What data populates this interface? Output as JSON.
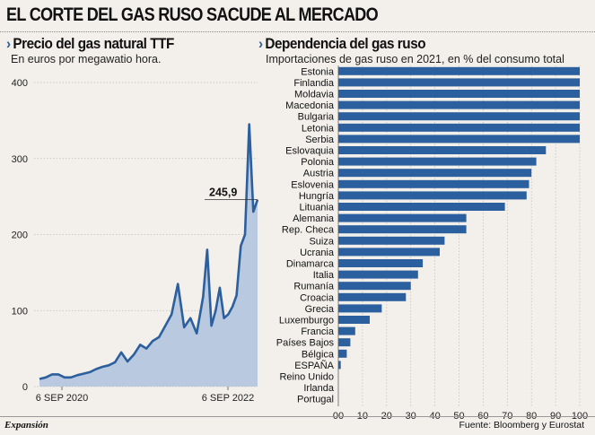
{
  "header": {
    "title": "EL CORTE DEL GAS RUSO SACUDE AL MERCADO"
  },
  "footer": {
    "brand": "Expansión",
    "source": "Fuente: Bloomberg y Eurostat"
  },
  "colors": {
    "line": "#2c5f9e",
    "area": "#b9c9df",
    "bar": "#2c5f9e",
    "background": "#f3f0eb"
  },
  "chart_data": [
    {
      "type": "area",
      "title": "Precio del gas natural TTF",
      "subtitle": "En euros por megawatio hora.",
      "x_tick_labels": [
        "6 SEP 2020",
        "6 SEP 2022"
      ],
      "y_ticks": [
        0,
        100,
        200,
        300,
        400
      ],
      "ylim": [
        0,
        400
      ],
      "annotation": {
        "label": "245,9",
        "value": 245.9
      },
      "x": [
        0,
        3,
        6,
        9,
        12,
        15,
        18,
        21,
        24,
        27,
        30,
        33,
        36,
        39,
        42,
        45,
        48,
        51,
        54,
        57,
        60,
        63,
        66,
        69,
        72,
        75,
        78,
        80,
        82,
        84,
        86,
        88,
        90,
        92,
        94,
        96,
        98,
        100,
        102,
        104
      ],
      "values": [
        10,
        12,
        16,
        16,
        12,
        12,
        15,
        17,
        19,
        23,
        26,
        28,
        32,
        45,
        33,
        42,
        55,
        50,
        60,
        65,
        80,
        95,
        135,
        78,
        90,
        70,
        118,
        180,
        80,
        100,
        130,
        90,
        95,
        105,
        120,
        185,
        200,
        345,
        230,
        245.9
      ]
    },
    {
      "type": "bar",
      "orientation": "horizontal",
      "title": "Dependencia del gas ruso",
      "subtitle": "Importaciones de gas ruso en 2021, en % del  consumo total",
      "xlim": [
        0,
        100
      ],
      "x_ticks": [
        "00",
        "10",
        "20",
        "30",
        "40",
        "50",
        "60",
        "70",
        "80",
        "90",
        "100"
      ],
      "categories": [
        "Estonia",
        "Finlandia",
        "Moldavia",
        "Macedonia",
        "Bulgaria",
        "Letonia",
        "Serbia",
        "Eslovaquia",
        "Polonia",
        "Austria",
        "Eslovenia",
        "Hungría",
        "Lituania",
        "Alemania",
        "Rep. Checa",
        "Suiza",
        "Ucrania",
        "Dinamarca",
        "Italia",
        "Rumanía",
        "Croacia",
        "Grecia",
        "Luxemburgo",
        "Francia",
        "Países Bajos",
        "Bélgica",
        "ESPAÑA",
        "Reino Unido",
        "Irlanda",
        "Portugal"
      ],
      "values": [
        100,
        100,
        100,
        100,
        100,
        100,
        100,
        86,
        82,
        80,
        79,
        78,
        69,
        53,
        53,
        44,
        42,
        35,
        33,
        30,
        28,
        18,
        13,
        7,
        5,
        3.5,
        1,
        0,
        0,
        0
      ]
    }
  ]
}
